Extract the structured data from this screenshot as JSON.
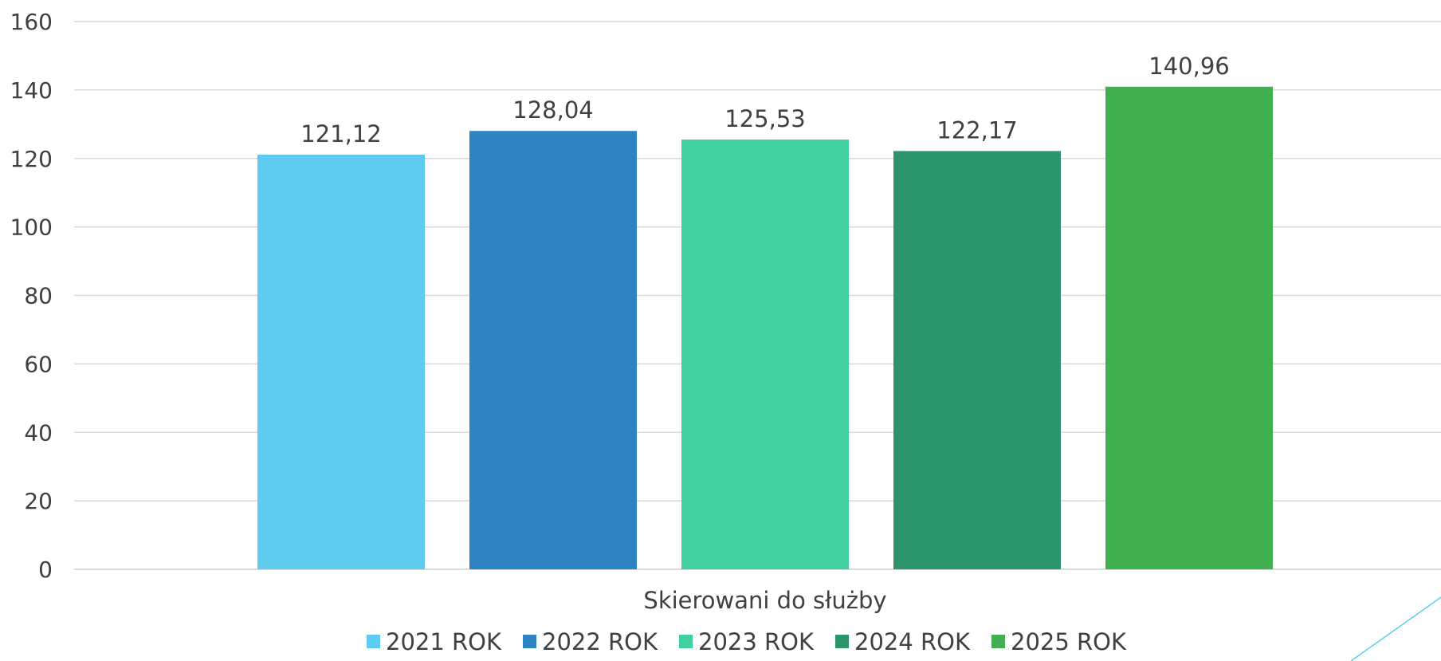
{
  "chart_data": {
    "type": "bar",
    "categories": [
      "Skierowani do służby"
    ],
    "series": [
      {
        "name": "2021 ROK",
        "values": [
          121.12
        ],
        "label": "121,12",
        "color": "#5fcbef"
      },
      {
        "name": "2022 ROK",
        "values": [
          128.04
        ],
        "label": "128,04",
        "color": "#2e83c3"
      },
      {
        "name": "2023 ROK",
        "values": [
          125.53
        ],
        "label": "125,53",
        "color": "#43d0a1"
      },
      {
        "name": "2024 ROK",
        "values": [
          122.17
        ],
        "label": "122,17",
        "color": "#2d956c"
      },
      {
        "name": "2025 ROK",
        "values": [
          140.96
        ],
        "label": "140,96",
        "color": "#42b051"
      }
    ],
    "yticks": [
      "0",
      "20",
      "40",
      "60",
      "80",
      "100",
      "120",
      "140",
      "160"
    ],
    "ylim": [
      0,
      160
    ],
    "grid": true,
    "legend_position": "bottom",
    "title": "",
    "xlabel": "",
    "ylabel": ""
  }
}
